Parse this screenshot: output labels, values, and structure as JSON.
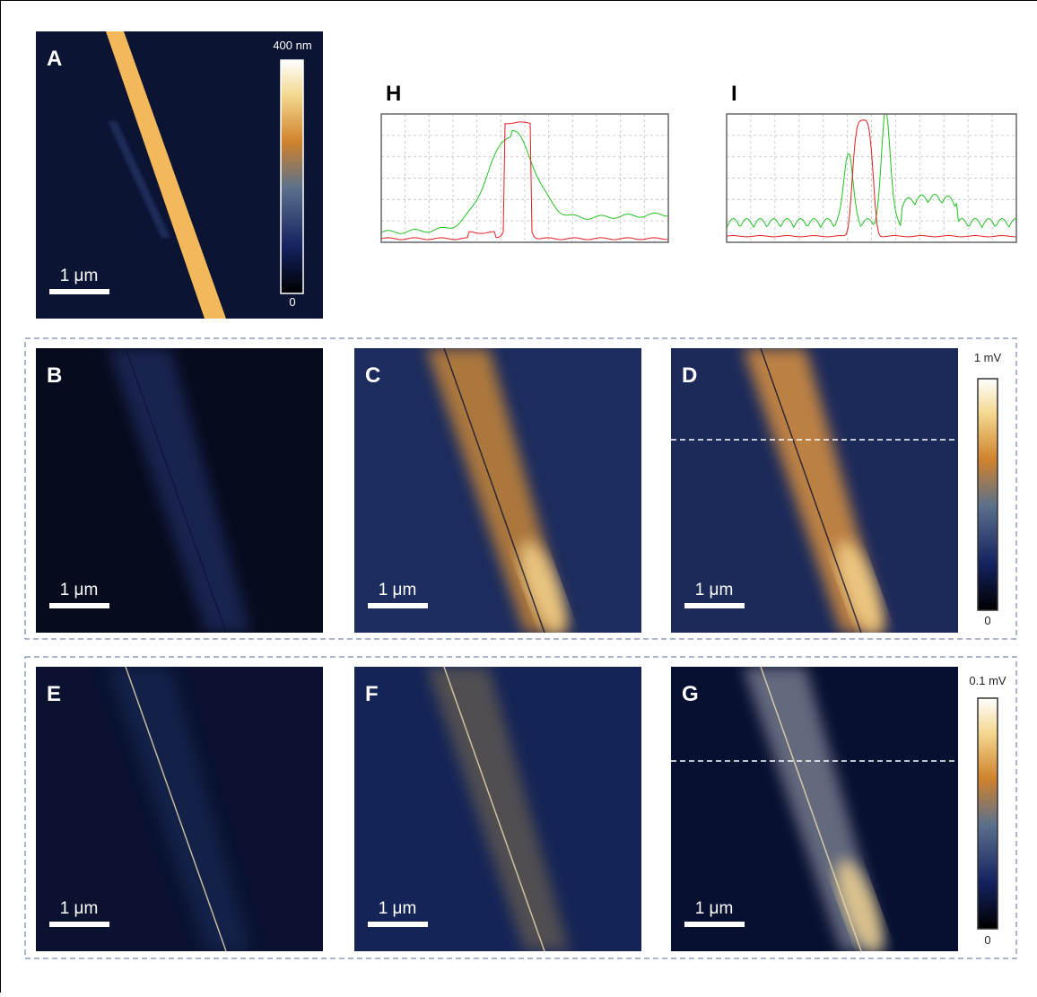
{
  "panels": [
    {
      "label": "A",
      "scale_bar": "1 μm"
    },
    {
      "label": "B",
      "scale_bar": "1 μm"
    },
    {
      "label": "C",
      "scale_bar": "1 μm"
    },
    {
      "label": "D",
      "scale_bar": "1 μm"
    },
    {
      "label": "E",
      "scale_bar": "1 μm"
    },
    {
      "label": "F",
      "scale_bar": "1 μm"
    },
    {
      "label": "G",
      "scale_bar": "1 μm"
    }
  ],
  "colorbars": [
    {
      "max": "400 nm",
      "min": "0"
    },
    {
      "max": "1 mV",
      "min": "0"
    },
    {
      "max": "0.1 mV",
      "min": "0"
    }
  ],
  "profiles": [
    {
      "label": "H"
    },
    {
      "label": "I"
    }
  ]
}
